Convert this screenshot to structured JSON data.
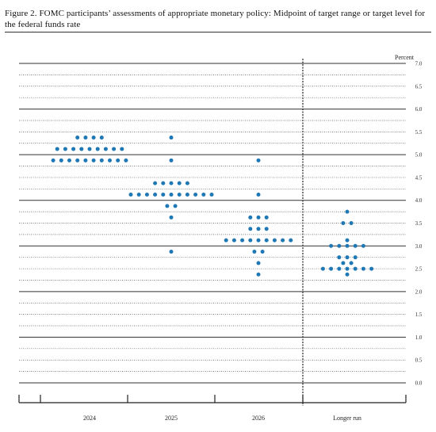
{
  "figure": {
    "title": "Figure 2.  FOMC participants’ assessments of appropriate monetary policy:  Midpoint of target range or target level for the federal funds rate"
  },
  "chart_data": {
    "type": "scatter",
    "title": "Figure 2.  FOMC participants’ assessments of appropriate monetary policy:  Midpoint of target range or target level for the federal funds rate",
    "ylabel": "Percent",
    "ylim": [
      0,
      7.0
    ],
    "yticks": [
      "0.0",
      "0.5",
      "1.0",
      "1.5",
      "2.0",
      "2.5",
      "3.0",
      "3.5",
      "4.0",
      "4.5",
      "5.0",
      "5.5",
      "6.0",
      "6.5",
      "7.0"
    ],
    "grid": true,
    "legend": "none",
    "dot_color": "#1f78b4",
    "categories": [
      "2024",
      "2025",
      "2026",
      "Longer run"
    ],
    "series": [
      {
        "category": "2024",
        "points": [
          {
            "y": 5.375,
            "count": 4
          },
          {
            "y": 5.125,
            "count": 9
          },
          {
            "y": 4.875,
            "count": 10
          }
        ]
      },
      {
        "category": "2025",
        "points": [
          {
            "y": 5.375,
            "count": 1
          },
          {
            "y": 4.875,
            "count": 1
          },
          {
            "y": 4.375,
            "count": 5
          },
          {
            "y": 4.125,
            "count": 11
          },
          {
            "y": 3.875,
            "count": 2
          },
          {
            "y": 3.625,
            "count": 1
          },
          {
            "y": 2.875,
            "count": 1
          }
        ]
      },
      {
        "category": "2026",
        "points": [
          {
            "y": 4.875,
            "count": 1
          },
          {
            "y": 4.125,
            "count": 1
          },
          {
            "y": 3.625,
            "count": 3
          },
          {
            "y": 3.375,
            "count": 3
          },
          {
            "y": 3.125,
            "count": 9
          },
          {
            "y": 2.875,
            "count": 2
          },
          {
            "y": 2.625,
            "count": 1
          },
          {
            "y": 2.375,
            "count": 1
          }
        ]
      },
      {
        "category": "Longer run",
        "points": [
          {
            "y": 3.75,
            "count": 1
          },
          {
            "y": 3.5,
            "count": 2
          },
          {
            "y": 3.125,
            "count": 1
          },
          {
            "y": 3.0,
            "count": 5
          },
          {
            "y": 2.75,
            "count": 3
          },
          {
            "y": 2.625,
            "count": 2
          },
          {
            "y": 2.5,
            "count": 7
          },
          {
            "y": 2.375,
            "count": 1
          }
        ]
      }
    ]
  }
}
